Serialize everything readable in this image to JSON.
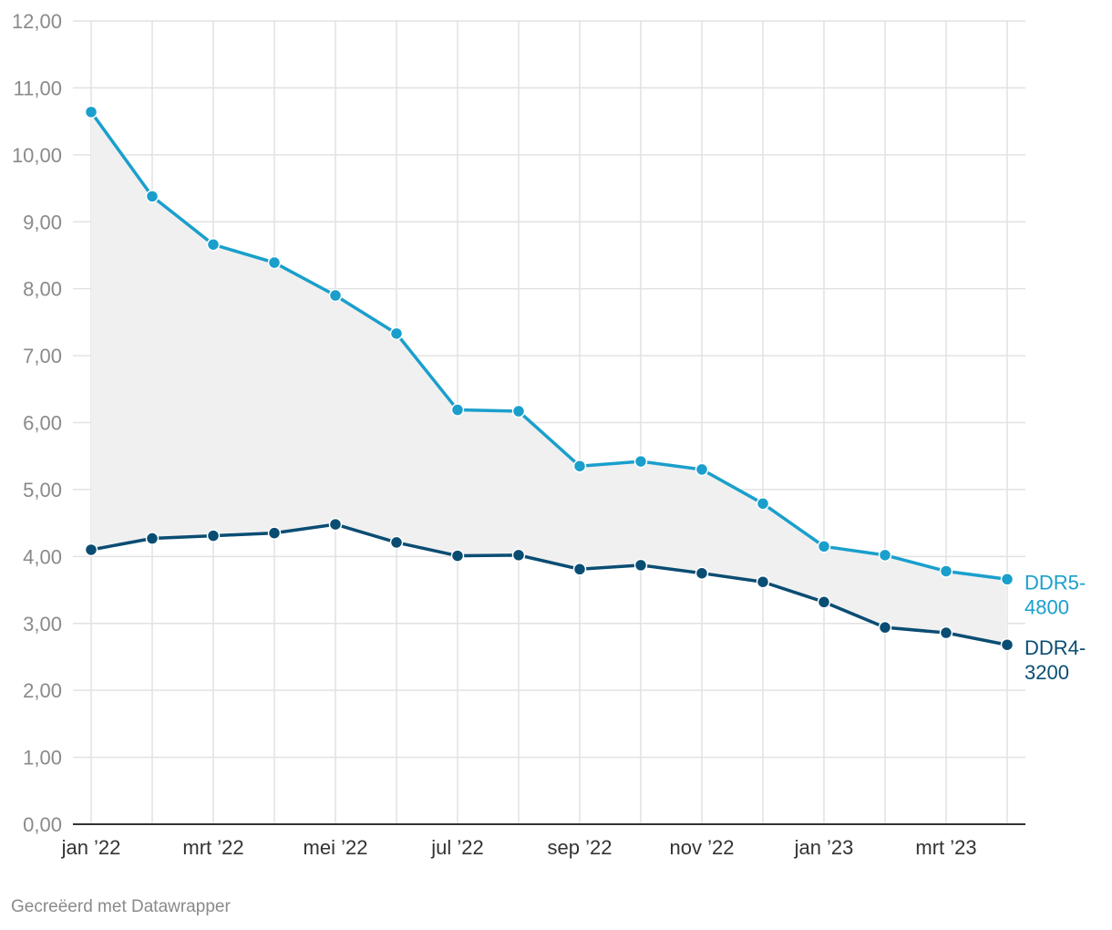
{
  "chart_data": {
    "type": "line",
    "title": "",
    "xlabel": "",
    "ylabel": "",
    "x": [
      "2022-01",
      "2022-02",
      "2022-03",
      "2022-04",
      "2022-05",
      "2022-06",
      "2022-07",
      "2022-08",
      "2022-09",
      "2022-10",
      "2022-11",
      "2022-12",
      "2023-01",
      "2023-02",
      "2023-03",
      "2023-04"
    ],
    "x_tick_labels": [
      {
        "x": "2022-01",
        "label": "jan ’22"
      },
      {
        "x": "2022-03",
        "label": "mrt ’22"
      },
      {
        "x": "2022-05",
        "label": "mei ’22"
      },
      {
        "x": "2022-07",
        "label": "jul ’22"
      },
      {
        "x": "2022-09",
        "label": "sep ’22"
      },
      {
        "x": "2022-11",
        "label": "nov ’22"
      },
      {
        "x": "2023-01",
        "label": "jan ’23"
      },
      {
        "x": "2023-03",
        "label": "mrt ’23"
      }
    ],
    "y_tick_labels": [
      "0,00",
      "1,00",
      "2,00",
      "3,00",
      "4,00",
      "5,00",
      "6,00",
      "7,00",
      "8,00",
      "9,00",
      "10,00",
      "11,00",
      "12,00"
    ],
    "ylim": [
      0,
      12
    ],
    "grid": true,
    "legend": "direct labels at line ends",
    "series": [
      {
        "name": "DDR5-4800",
        "label_lines": [
          "DDR5-",
          "4800"
        ],
        "color": "#1a9fcc",
        "values": [
          10.64,
          9.38,
          8.66,
          8.39,
          7.9,
          7.33,
          6.19,
          6.17,
          5.35,
          5.42,
          5.3,
          4.79,
          4.15,
          4.02,
          3.78,
          3.66
        ]
      },
      {
        "name": "DDR4-3200",
        "label_lines": [
          "DDR4-",
          "3200"
        ],
        "color": "#0a4d73",
        "values": [
          4.1,
          4.27,
          4.31,
          4.35,
          4.48,
          4.21,
          4.01,
          4.02,
          3.81,
          3.87,
          3.75,
          3.62,
          3.32,
          2.94,
          2.86,
          2.68
        ]
      }
    ],
    "area_between_color": "#f0f0f0"
  },
  "footer": {
    "credit": "Gecreëerd met Datawrapper"
  }
}
